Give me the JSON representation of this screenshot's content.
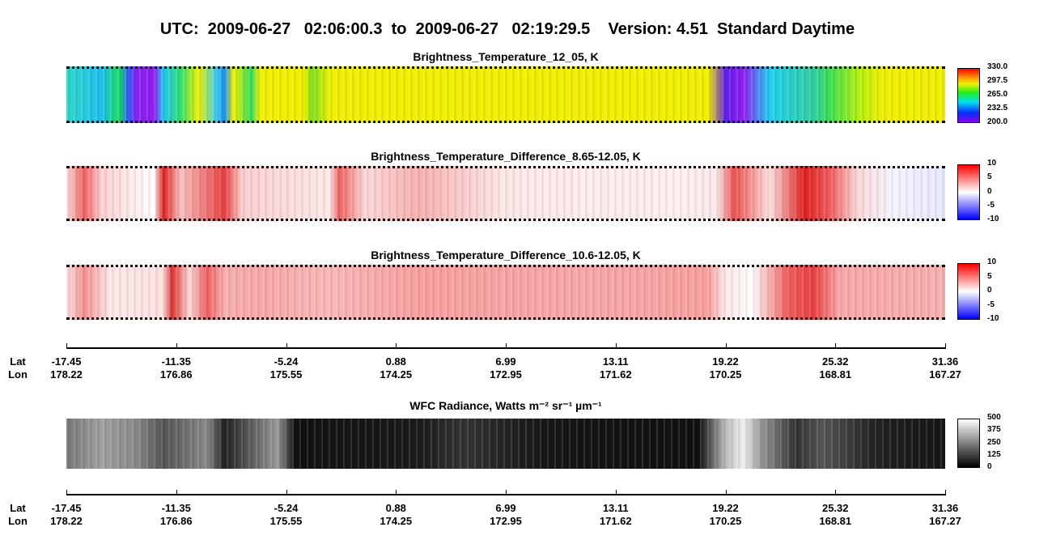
{
  "header": {
    "title": "UTC:  2009-06-27   02:06:00.3  to  2009-06-27   02:19:29.5    Version: 4.51  Standard Daytime"
  },
  "panels": [
    {
      "title": "Brightness_Temperature_12_05, K",
      "colorbar_ticks": [
        "330.0",
        "297.5",
        "265.0",
        "232.5",
        "200.0"
      ]
    },
    {
      "title": "Brightness_Temperature_Difference_8.65-12.05, K",
      "colorbar_ticks": [
        "10",
        "5",
        "0",
        "-5",
        "-10"
      ]
    },
    {
      "title": "Brightness_Temperature_Difference_10.6-12.05, K",
      "colorbar_ticks": [
        "10",
        "5",
        "0",
        "-5",
        "-10"
      ]
    },
    {
      "title": "WFC Radiance, Watts m⁻² sr⁻¹ µm⁻¹",
      "colorbar_ticks": [
        "500",
        "375",
        "250",
        "125",
        "0"
      ]
    }
  ],
  "axes": [
    {
      "lat_label": "Lat",
      "lon_label": "Lon",
      "lat": [
        "-17.45",
        "-11.35",
        "-5.24",
        "0.88",
        "6.99",
        "13.11",
        "19.22",
        "25.32",
        "31.36"
      ],
      "lon": [
        "178.22",
        "176.86",
        "175.55",
        "174.25",
        "172.95",
        "171.62",
        "170.25",
        "168.81",
        "167.27"
      ]
    },
    {
      "lat_label": "Lat",
      "lon_label": "Lon",
      "lat": [
        "-17.45",
        "-11.35",
        "-5.24",
        "0.88",
        "6.99",
        "13.11",
        "19.22",
        "25.32",
        "31.36"
      ],
      "lon": [
        "178.22",
        "176.86",
        "175.55",
        "174.25",
        "172.95",
        "171.62",
        "170.25",
        "168.81",
        "167.27"
      ]
    }
  ]
}
